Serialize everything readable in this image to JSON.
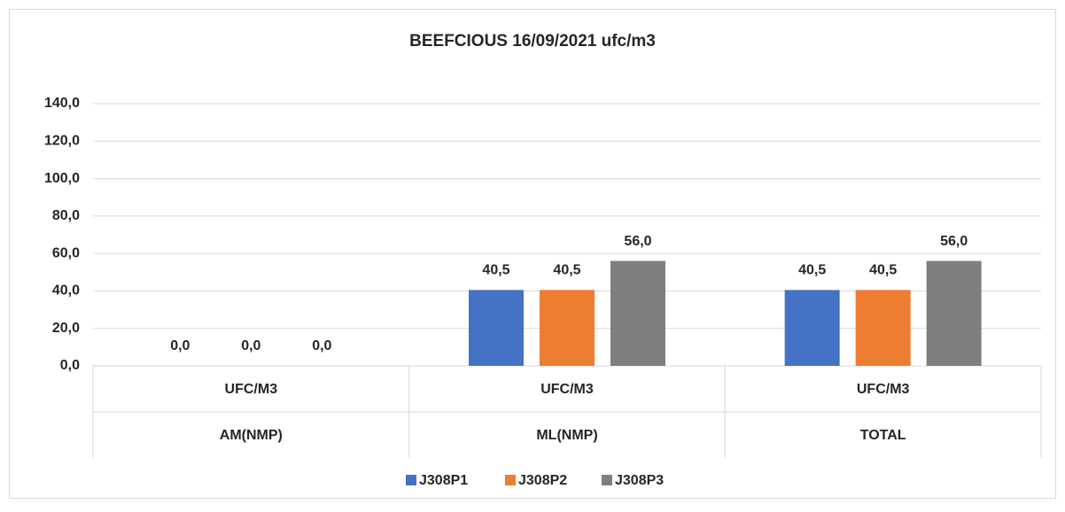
{
  "chart_data": {
    "type": "bar",
    "title": "BEEFCIOUS 16/09/2021 ufc/m3",
    "categories": [
      "UFC/M3",
      "UFC/M3",
      "UFC/M3"
    ],
    "category_groups": [
      "AM(NMP)",
      "ML(NMP)",
      "TOTAL"
    ],
    "series": [
      {
        "name": "J308P1",
        "color": "#4472C4",
        "values": [
          0,
          40.5,
          40.5
        ],
        "value_labels": [
          "0,0",
          "40,5",
          "40,5"
        ]
      },
      {
        "name": "J308P2",
        "color": "#ED7D31",
        "values": [
          0,
          40.5,
          40.5
        ],
        "value_labels": [
          "0,0",
          "40,5",
          "40,5"
        ]
      },
      {
        "name": "J308P3",
        "color": "#7F7F7F",
        "values": [
          0,
          56,
          56
        ],
        "value_labels": [
          "0,0",
          "56,0",
          "56,0"
        ]
      }
    ],
    "ylim": [
      0,
      140
    ],
    "yticks": [
      {
        "value": 0,
        "label": "0,0"
      },
      {
        "value": 20,
        "label": "20,0"
      },
      {
        "value": 40,
        "label": "40,0"
      },
      {
        "value": 60,
        "label": "60,0"
      },
      {
        "value": 80,
        "label": "80,0"
      },
      {
        "value": 100,
        "label": "100,0"
      },
      {
        "value": 120,
        "label": "120,0"
      },
      {
        "value": 140,
        "label": "140,0"
      }
    ],
    "grid": true,
    "legend": "bottom"
  }
}
